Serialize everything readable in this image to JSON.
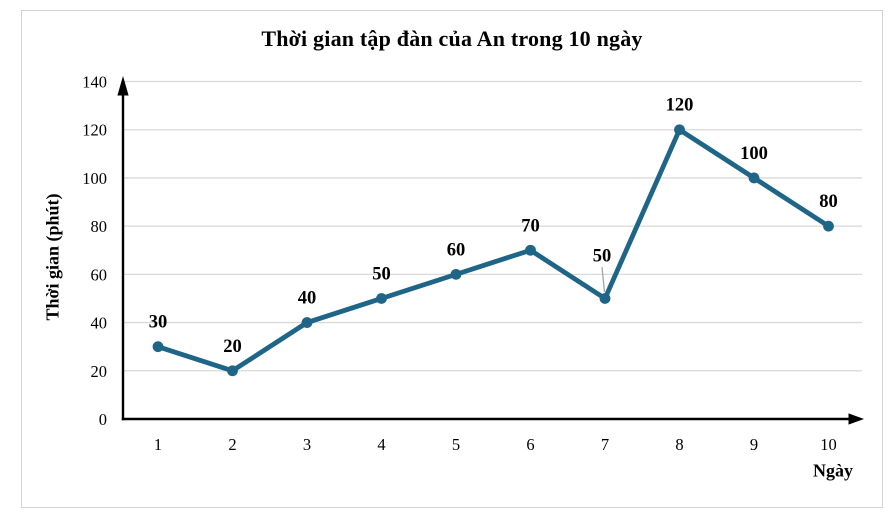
{
  "chart": {
    "title": "Thời gian tập đàn của An trong 10 ngày",
    "y_axis_title": "Thời gian (phút)",
    "x_axis_title": "Ngày"
  },
  "chart_data": {
    "type": "line",
    "title": "Thời gian tập đàn của An trong 10 ngày",
    "xlabel": "Ngày",
    "ylabel": "Thời gian (phút)",
    "categories": [
      "1",
      "2",
      "3",
      "4",
      "5",
      "6",
      "7",
      "8",
      "9",
      "10"
    ],
    "values": [
      30,
      20,
      40,
      50,
      60,
      70,
      50,
      120,
      100,
      80
    ],
    "data_labels_shown": true,
    "ylim": [
      0,
      140
    ],
    "yticks": [
      0,
      20,
      40,
      60,
      80,
      100,
      120,
      140
    ],
    "grid": "horizontal-only",
    "legend": "none",
    "marker": "circle",
    "leader_line_point_index": 6,
    "colors": {
      "series": "#1F6587",
      "gridline": "#D9D9D9",
      "axis": "#000000",
      "text": "#000000",
      "leader_line": "#A6A6A6",
      "frame_border": "#D2D2D2"
    }
  }
}
